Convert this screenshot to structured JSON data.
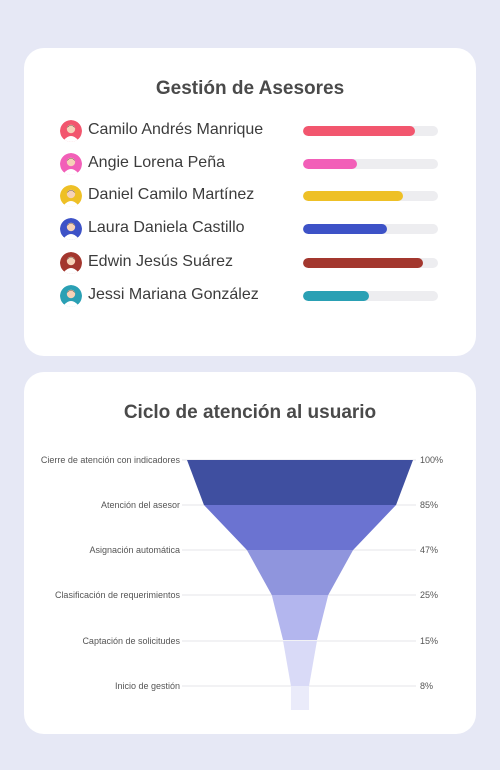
{
  "advisors": {
    "title": "Gestión de Asesores",
    "items": [
      {
        "name": "Camilo Andrés Manrique",
        "value": 83,
        "color": "#f2566e",
        "avatar_color": "#f2566e",
        "icon": "user-avatar-icon"
      },
      {
        "name": "Angie Lorena Peña",
        "value": 40,
        "color": "#f25fb8",
        "avatar_color": "#f25fb8",
        "icon": "user-avatar-icon"
      },
      {
        "name": "Daniel Camilo Martínez",
        "value": 74,
        "color": "#eec026",
        "avatar_color": "#eec026",
        "icon": "user-avatar-icon"
      },
      {
        "name": "Laura Daniela Castillo",
        "value": 62,
        "color": "#3d52c7",
        "avatar_color": "#3d52c7",
        "icon": "user-avatar-icon"
      },
      {
        "name": "Edwin Jesús Suárez",
        "value": 89,
        "color": "#a3372e",
        "avatar_color": "#a3372e",
        "icon": "user-avatar-icon"
      },
      {
        "name": "Jessi Mariana González",
        "value": 49,
        "color": "#2aa0b4",
        "avatar_color": "#2aa0b4",
        "icon": "user-avatar-icon"
      }
    ]
  },
  "chart_data": {
    "type": "funnel",
    "title": "Ciclo de atención al usuario",
    "stages": [
      {
        "label": "Cierre de atención con indicadores",
        "value": 100,
        "value_label": "100%",
        "color": "#3f4fa0"
      },
      {
        "label": "Atención del asesor",
        "value": 85,
        "value_label": "85%",
        "color": "#6b73d1"
      },
      {
        "label": "Asignación automática",
        "value": 47,
        "value_label": "47%",
        "color": "#8f95dd"
      },
      {
        "label": "Clasificación de requerimientos",
        "value": 25,
        "value_label": "25%",
        "color": "#b3b6ee"
      },
      {
        "label": "Captación de solicitudes",
        "value": 15,
        "value_label": "15%",
        "color": "#d9daf7"
      },
      {
        "label": "Inicio de gestión",
        "value": 8,
        "value_label": "8%",
        "color": "#eaebfa"
      }
    ],
    "grid": true
  }
}
